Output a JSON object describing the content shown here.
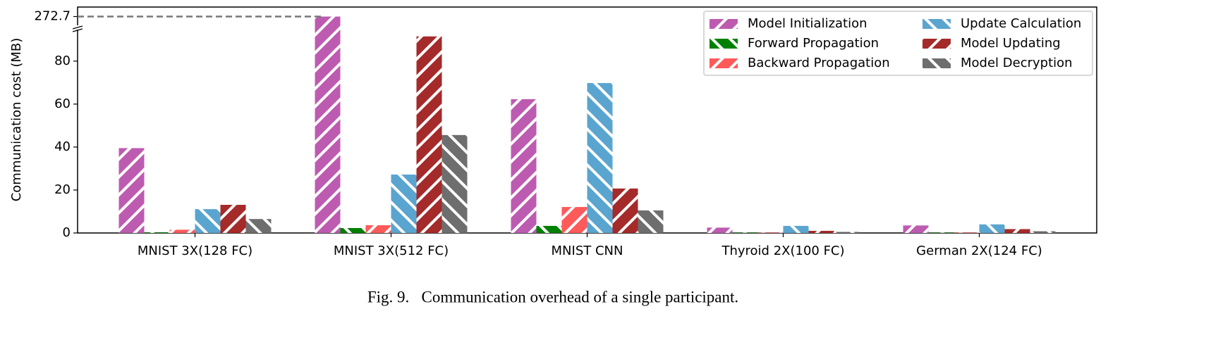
{
  "chart_data": {
    "type": "bar",
    "y_label": "Communication cost (MB)",
    "caption": "Fig. 9.   Communication overhead of a single participant.",
    "categories": [
      "MNIST 3X(128 FC)",
      "MNIST 3X(512 FC)",
      "MNIST CNN",
      "Thyroid 2X(100 FC)",
      "German 2X(124 FC)"
    ],
    "series": [
      {
        "name": "Model Initialization",
        "color": "#bd5bb1",
        "hatch": "/",
        "values": [
          39.5,
          272.7,
          62.3,
          2.5,
          3.5
        ]
      },
      {
        "name": "Forward Propagation",
        "color": "#008000",
        "hatch": "\\",
        "values": [
          0.3,
          2.3,
          3.3,
          0.2,
          0.2
        ]
      },
      {
        "name": "Backward Propagation",
        "color": "#ff5a5a",
        "hatch": "/",
        "values": [
          1.5,
          3.6,
          12.1,
          0.2,
          0.2
        ]
      },
      {
        "name": "Update Calculation",
        "color": "#5aa5cf",
        "hatch": "\\",
        "values": [
          11.1,
          27.2,
          69.8,
          3.3,
          4.0
        ]
      },
      {
        "name": "Model Updating",
        "color": "#a52a2a",
        "hatch": "/",
        "values": [
          13.1,
          91.5,
          20.7,
          1.0,
          1.8
        ]
      },
      {
        "name": "Model Decryption",
        "color": "#6e6e6e",
        "hatch": "\\",
        "values": [
          6.5,
          45.6,
          10.5,
          0.5,
          0.8
        ]
      }
    ],
    "ylim": [
      0,
      277
    ],
    "axis_break": [
      96,
      270
    ],
    "yticks": [
      0,
      20,
      40,
      60,
      80,
      272.7
    ],
    "legend": "upper right",
    "legend_columns": 2
  }
}
